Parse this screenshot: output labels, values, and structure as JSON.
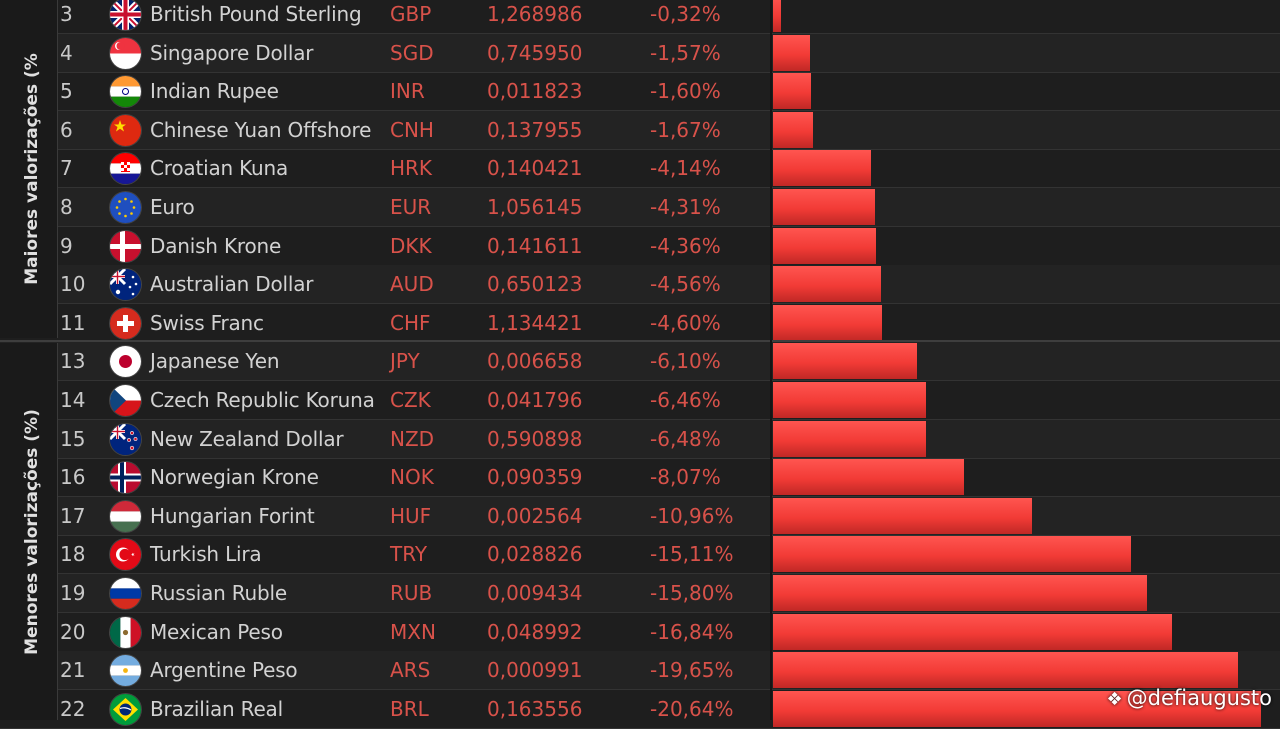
{
  "groups": {
    "top_label": "Maiores valorizações (%",
    "bottom_label": "Menores valorizações (%)"
  },
  "chart_data": {
    "type": "bar",
    "orientation": "horizontal",
    "xlim": [
      0,
      21
    ],
    "rows": [
      {
        "rank": "3",
        "name": "British Pound Sterling",
        "code": "GBP",
        "rate": "1,268986",
        "pct_label": "-0,32%",
        "value": -0.32,
        "flag": "gb",
        "group": "top"
      },
      {
        "rank": "4",
        "name": "Singapore Dollar",
        "code": "SGD",
        "rate": "0,745950",
        "pct_label": "-1,57%",
        "value": -1.57,
        "flag": "sg",
        "group": "top"
      },
      {
        "rank": "5",
        "name": "Indian Rupee",
        "code": "INR",
        "rate": "0,011823",
        "pct_label": "-1,60%",
        "value": -1.6,
        "flag": "in",
        "group": "top"
      },
      {
        "rank": "6",
        "name": "Chinese Yuan Offshore",
        "code": "CNH",
        "rate": "0,137955",
        "pct_label": "-1,67%",
        "value": -1.67,
        "flag": "cn",
        "group": "top"
      },
      {
        "rank": "7",
        "name": "Croatian Kuna",
        "code": "HRK",
        "rate": "0,140421",
        "pct_label": "-4,14%",
        "value": -4.14,
        "flag": "hr",
        "group": "top"
      },
      {
        "rank": "8",
        "name": "Euro",
        "code": "EUR",
        "rate": "1,056145",
        "pct_label": "-4,31%",
        "value": -4.31,
        "flag": "eu",
        "group": "top"
      },
      {
        "rank": "9",
        "name": "Danish Krone",
        "code": "DKK",
        "rate": "0,141611",
        "pct_label": "-4,36%",
        "value": -4.36,
        "flag": "dk",
        "group": "top"
      },
      {
        "rank": "10",
        "name": "Australian Dollar",
        "code": "AUD",
        "rate": "0,650123",
        "pct_label": "-4,56%",
        "value": -4.56,
        "flag": "au",
        "group": "top"
      },
      {
        "rank": "11",
        "name": "Swiss Franc",
        "code": "CHF",
        "rate": "1,134421",
        "pct_label": "-4,60%",
        "value": -4.6,
        "flag": "ch",
        "group": "top"
      },
      {
        "rank": "13",
        "name": "Japanese Yen",
        "code": "JPY",
        "rate": "0,006658",
        "pct_label": "-6,10%",
        "value": -6.1,
        "flag": "jp",
        "group": "bottom"
      },
      {
        "rank": "14",
        "name": "Czech Republic Koruna",
        "code": "CZK",
        "rate": "0,041796",
        "pct_label": "-6,46%",
        "value": -6.46,
        "flag": "cz",
        "group": "bottom"
      },
      {
        "rank": "15",
        "name": "New Zealand Dollar",
        "code": "NZD",
        "rate": "0,590898",
        "pct_label": "-6,48%",
        "value": -6.48,
        "flag": "nz",
        "group": "bottom"
      },
      {
        "rank": "16",
        "name": "Norwegian Krone",
        "code": "NOK",
        "rate": "0,090359",
        "pct_label": "-8,07%",
        "value": -8.07,
        "flag": "no",
        "group": "bottom"
      },
      {
        "rank": "17",
        "name": "Hungarian Forint",
        "code": "HUF",
        "rate": "0,002564",
        "pct_label": "-10,96%",
        "value": -10.96,
        "flag": "hu",
        "group": "bottom"
      },
      {
        "rank": "18",
        "name": "Turkish Lira",
        "code": "TRY",
        "rate": "0,028826",
        "pct_label": "-15,11%",
        "value": -15.11,
        "flag": "tr",
        "group": "bottom"
      },
      {
        "rank": "19",
        "name": "Russian Ruble",
        "code": "RUB",
        "rate": "0,009434",
        "pct_label": "-15,80%",
        "value": -15.8,
        "flag": "ru",
        "group": "bottom"
      },
      {
        "rank": "20",
        "name": "Mexican Peso",
        "code": "MXN",
        "rate": "0,048992",
        "pct_label": "-16,84%",
        "value": -16.84,
        "flag": "mx",
        "group": "bottom"
      },
      {
        "rank": "21",
        "name": "Argentine Peso",
        "code": "ARS",
        "rate": "0,000991",
        "pct_label": "-19,65%",
        "value": -19.65,
        "flag": "ar",
        "group": "bottom"
      },
      {
        "rank": "22",
        "name": "Brazilian Real",
        "code": "BRL",
        "rate": "0,163556",
        "pct_label": "-20,64%",
        "value": -20.64,
        "flag": "br",
        "group": "bottom"
      }
    ],
    "bar_color": "#f23b36"
  },
  "watermark": {
    "text": "@defiaugusto",
    "icon": "diamond-logo-icon"
  }
}
